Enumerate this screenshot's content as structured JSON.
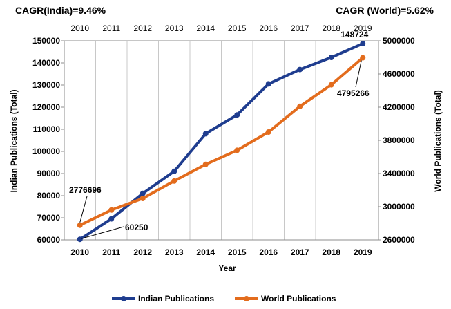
{
  "chart_data": {
    "type": "line",
    "cagr_india": "CAGR(India)=9.46%",
    "cagr_world": "CAGR (World)=5.62%",
    "x": [
      "2010",
      "2011",
      "2012",
      "2013",
      "2014",
      "2015",
      "2016",
      "2017",
      "2018",
      "2019"
    ],
    "xlabel": "Year",
    "ylabel_left": "Indian Publications (Total)",
    "ylabel_right": "World Publications (Total)",
    "ylim_left": [
      60000,
      150000
    ],
    "ylim_right": [
      2600000,
      5000000
    ],
    "yticks_left": [
      "60000",
      "70000",
      "80000",
      "90000",
      "100000",
      "110000",
      "120000",
      "130000",
      "140000",
      "150000"
    ],
    "yticks_right": [
      "2600000",
      "3000000",
      "3400000",
      "3800000",
      "4200000",
      "4600000",
      "5000000"
    ],
    "grid": "vertical",
    "legend_position": "bottom",
    "series": [
      {
        "name": "Indian Publications",
        "axis": "left",
        "color": "#1F3D8F",
        "values": [
          60250,
          69500,
          81000,
          91000,
          108000,
          116500,
          130500,
          137000,
          142500,
          148724
        ]
      },
      {
        "name": "World Publications",
        "axis": "right",
        "color": "#E36C1D",
        "values": [
          2776696,
          2960000,
          3100000,
          3310000,
          3510000,
          3680000,
          3900000,
          4210000,
          4470000,
          4795266
        ]
      }
    ],
    "annotations": {
      "india_first": "60250",
      "india_last": "148724",
      "world_first": "2776696",
      "world_last": "4795266"
    }
  }
}
